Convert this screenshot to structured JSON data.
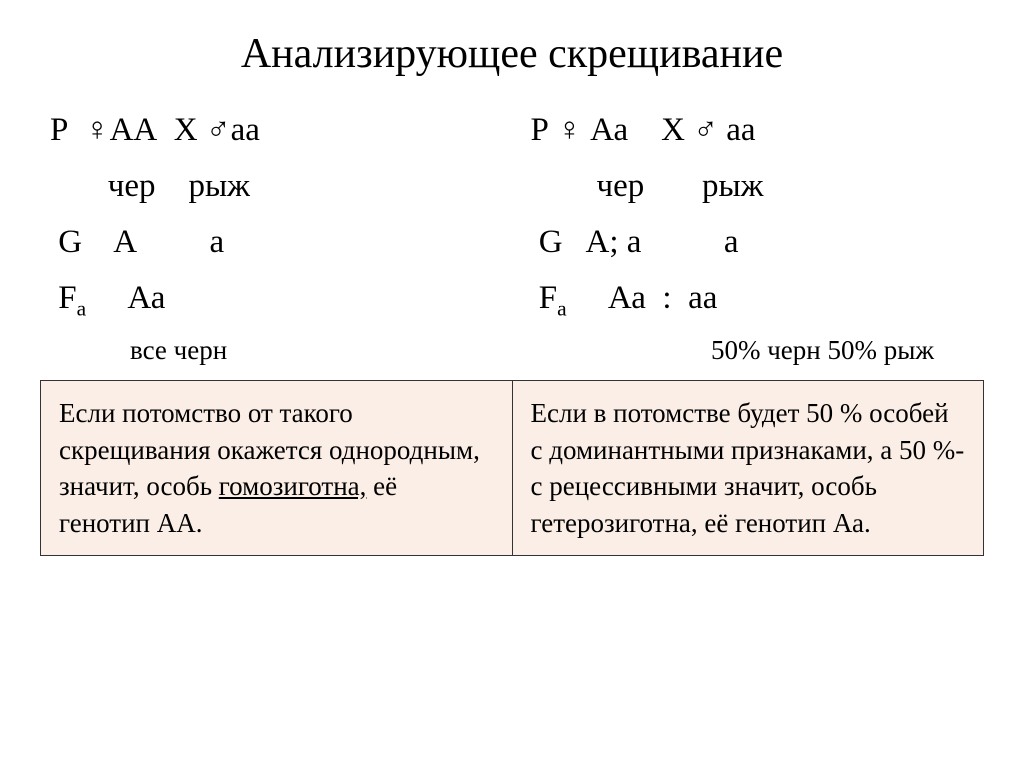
{
  "title": "Анализирующее скрещивание",
  "left": {
    "p": "Р  ♀АА  Х ♂аа",
    "pheno": "       чер    рыж",
    "g": " G    A         a",
    "f_label": " F",
    "f_sub": "а",
    "f_val": "     Аа",
    "result": "все черн"
  },
  "right": {
    "p": "Р ♀ Аа    Х ♂ аа",
    "pheno": "        чер       рыж",
    "g": " G   A; a          a",
    "f_label": " F",
    "f_sub": "а",
    "f_val": "     Аа  :  аа",
    "result": "50% черн 50% рыж"
  },
  "explain": {
    "left_pre": "Если потомство от такого скрещивания окажется однородным, значит, особь ",
    "left_u": "гомозиготна,",
    "left_post": " её генотип АА.",
    "right": "Если в потомстве будет 50 % особей с доминантными признаками, а 50 %-с рецессивными значит, особь гетерозиготна, её генотип Аа."
  },
  "style": {
    "bg": "#ffffff",
    "text": "#000000",
    "table_bg": "#fbeee6",
    "table_border": "#333333",
    "title_fontsize": 42,
    "body_fontsize": 33,
    "result_fontsize": 27,
    "explain_fontsize": 27,
    "font_family": "Times New Roman"
  }
}
